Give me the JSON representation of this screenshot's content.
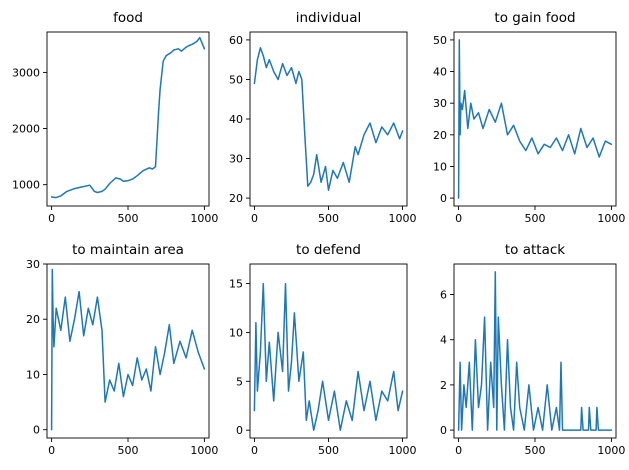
{
  "figure": {
    "line_color": "#1f77b4",
    "background": "#ffffff"
  },
  "chart_data": [
    {
      "type": "line",
      "title": "food",
      "xlim": [
        -30,
        1030
      ],
      "ylim": [
        620,
        3720
      ],
      "xticks": [
        0,
        500,
        1000
      ],
      "yticks": [
        1000,
        2000,
        3000
      ],
      "series": [
        {
          "x": [
            0,
            30,
            60,
            100,
            150,
            200,
            250,
            280,
            300,
            330,
            350,
            380,
            420,
            450,
            470,
            500,
            530,
            560,
            600,
            640,
            660,
            680,
            700,
            710,
            730,
            750,
            780,
            800,
            830,
            850,
            880,
            900,
            920,
            950,
            970,
            1000
          ],
          "y": [
            780,
            770,
            800,
            880,
            930,
            960,
            990,
            880,
            860,
            880,
            920,
            1020,
            1120,
            1100,
            1060,
            1070,
            1100,
            1160,
            1250,
            1300,
            1280,
            1320,
            2300,
            2700,
            3200,
            3300,
            3350,
            3400,
            3420,
            3380,
            3450,
            3480,
            3500,
            3550,
            3620,
            3420
          ]
        }
      ]
    },
    {
      "type": "line",
      "title": "individual",
      "xlim": [
        -30,
        1030
      ],
      "ylim": [
        18,
        62
      ],
      "xticks": [
        0,
        500,
        1000
      ],
      "yticks": [
        20,
        30,
        40,
        50,
        60
      ],
      "series": [
        {
          "x": [
            0,
            20,
            40,
            60,
            80,
            100,
            130,
            160,
            190,
            220,
            250,
            280,
            300,
            320,
            340,
            360,
            380,
            400,
            420,
            450,
            480,
            500,
            530,
            560,
            600,
            640,
            680,
            700,
            740,
            780,
            820,
            860,
            900,
            940,
            980,
            1000
          ],
          "y": [
            49,
            55,
            58,
            56,
            53,
            55,
            52,
            50,
            54,
            51,
            53,
            49,
            52,
            50,
            36,
            23,
            24,
            26,
            31,
            24,
            28,
            22,
            27,
            25,
            29,
            24,
            33,
            31,
            36,
            39,
            34,
            38,
            36,
            39,
            35,
            37
          ]
        }
      ]
    },
    {
      "type": "line",
      "title": "to gain food",
      "xlim": [
        -30,
        1030
      ],
      "ylim": [
        -2.5,
        52.5
      ],
      "xticks": [
        0,
        500,
        1000
      ],
      "yticks": [
        0,
        10,
        20,
        30,
        40,
        50
      ],
      "series": [
        {
          "x": [
            0,
            5,
            10,
            15,
            25,
            40,
            60,
            80,
            100,
            130,
            160,
            200,
            240,
            280,
            320,
            360,
            400,
            440,
            480,
            520,
            560,
            600,
            640,
            680,
            720,
            760,
            800,
            840,
            880,
            920,
            960,
            1000
          ],
          "y": [
            0,
            50,
            20,
            30,
            28,
            34,
            22,
            30,
            25,
            27,
            22,
            28,
            24,
            30,
            20,
            23,
            18,
            15,
            19,
            14,
            17,
            16,
            19,
            15,
            20,
            14,
            22,
            16,
            19,
            13,
            18,
            17
          ]
        }
      ]
    },
    {
      "type": "line",
      "title": "to maintain area",
      "xlim": [
        -30,
        1030
      ],
      "ylim": [
        -1.5,
        30
      ],
      "xticks": [
        0,
        500,
        1000
      ],
      "yticks": [
        0,
        10,
        20,
        30
      ],
      "series": [
        {
          "x": [
            0,
            5,
            10,
            15,
            30,
            60,
            90,
            120,
            150,
            180,
            210,
            240,
            270,
            300,
            330,
            350,
            380,
            410,
            440,
            470,
            500,
            530,
            560,
            590,
            620,
            650,
            680,
            710,
            740,
            770,
            800,
            840,
            880,
            920,
            960,
            1000
          ],
          "y": [
            0,
            29,
            20,
            15,
            22,
            18,
            24,
            16,
            20,
            25,
            17,
            22,
            19,
            24,
            18,
            5,
            9,
            7,
            12,
            6,
            10,
            8,
            13,
            9,
            11,
            7,
            15,
            10,
            14,
            19,
            12,
            16,
            13,
            18,
            14,
            11
          ]
        }
      ]
    },
    {
      "type": "line",
      "title": "to defend",
      "xlim": [
        -30,
        1030
      ],
      "ylim": [
        -0.8,
        17
      ],
      "xticks": [
        0,
        500,
        1000
      ],
      "yticks": [
        0,
        5,
        10,
        15
      ],
      "series": [
        {
          "x": [
            0,
            10,
            20,
            40,
            60,
            80,
            100,
            130,
            160,
            190,
            210,
            230,
            250,
            270,
            300,
            330,
            350,
            370,
            400,
            430,
            460,
            500,
            540,
            580,
            620,
            660,
            700,
            740,
            780,
            820,
            860,
            900,
            940,
            970,
            1000
          ],
          "y": [
            2,
            11,
            4,
            8,
            15,
            5,
            9,
            3,
            10,
            6,
            15,
            4,
            7,
            12,
            5,
            8,
            1,
            3,
            0,
            2,
            5,
            1,
            4,
            0,
            3,
            1,
            6,
            2,
            5,
            1,
            4,
            3,
            6,
            2,
            4
          ]
        }
      ]
    },
    {
      "type": "line",
      "title": "to attack",
      "xlim": [
        -30,
        1030
      ],
      "ylim": [
        -0.35,
        7.35
      ],
      "xticks": [
        0,
        500,
        1000
      ],
      "yticks": [
        0,
        2,
        4,
        6
      ],
      "series": [
        {
          "x": [
            0,
            10,
            20,
            35,
            50,
            70,
            90,
            110,
            130,
            150,
            170,
            190,
            210,
            230,
            240,
            250,
            260,
            280,
            300,
            320,
            340,
            360,
            380,
            400,
            430,
            460,
            490,
            520,
            550,
            580,
            610,
            640,
            660,
            670,
            680,
            700,
            800,
            805,
            815,
            850,
            855,
            865,
            900,
            905,
            915,
            1000
          ],
          "y": [
            0,
            3,
            0,
            2,
            1,
            3,
            0,
            4,
            1,
            2,
            5,
            0,
            3,
            1,
            7,
            0,
            5,
            2,
            0,
            4,
            1,
            0,
            3,
            1,
            0,
            2,
            0,
            1,
            0,
            2,
            0,
            1,
            0,
            3,
            0,
            0,
            0,
            1,
            0,
            0,
            1,
            0,
            0,
            1,
            0,
            0
          ]
        }
      ]
    }
  ]
}
